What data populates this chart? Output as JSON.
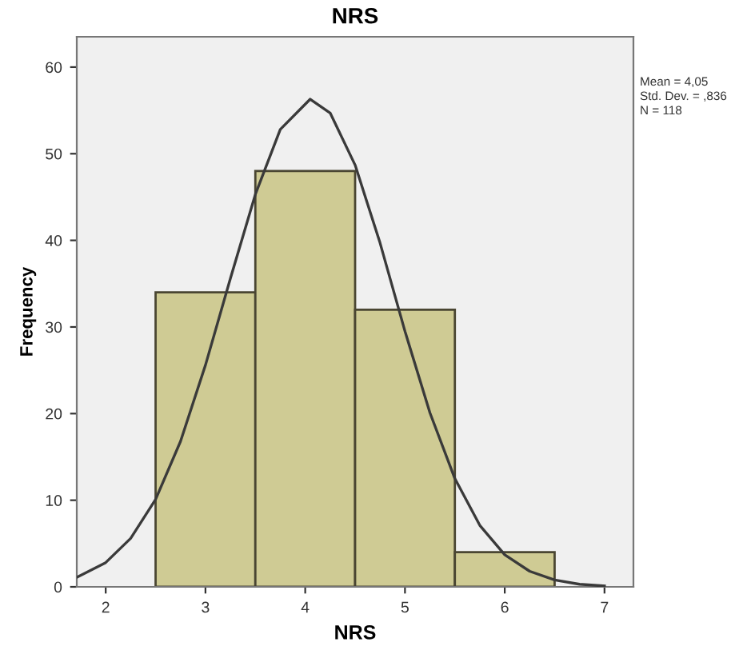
{
  "chart_data": {
    "type": "histogram",
    "title": "NRS",
    "xlabel": "NRS",
    "ylabel": "Frequency",
    "xlim": [
      1.71,
      7.29
    ],
    "xticks": [
      2,
      3,
      4,
      5,
      6,
      7
    ],
    "ylim": [
      0,
      63.5
    ],
    "yticks": [
      0,
      10,
      20,
      30,
      40,
      50,
      60
    ],
    "grid": false,
    "bins": [
      2.5,
      3.5,
      4.5,
      5.5,
      6.5
    ],
    "values": [
      34,
      48,
      32,
      4
    ],
    "color": "#cfcb94",
    "series": [
      {
        "type": "line",
        "color": "#3a3a3a",
        "x": [
          1.71,
          2.0,
          2.25,
          2.5,
          2.75,
          3.0,
          3.25,
          3.5,
          3.75,
          4.05,
          4.25,
          4.5,
          4.75,
          5.0,
          5.25,
          5.5,
          5.75,
          6.0,
          6.25,
          6.5,
          6.75,
          7.0
        ],
        "values": [
          1.1,
          2.8,
          5.6,
          10.1,
          16.8,
          25.6,
          35.6,
          45.3,
          52.8,
          56.3,
          54.7,
          48.7,
          39.7,
          29.5,
          20.1,
          12.5,
          7.1,
          3.7,
          1.8,
          0.8,
          0.3,
          0.1
        ]
      }
    ],
    "annotations": [
      "Mean = 4,05",
      "Std. Dev. = ,836",
      "N = 118"
    ]
  }
}
